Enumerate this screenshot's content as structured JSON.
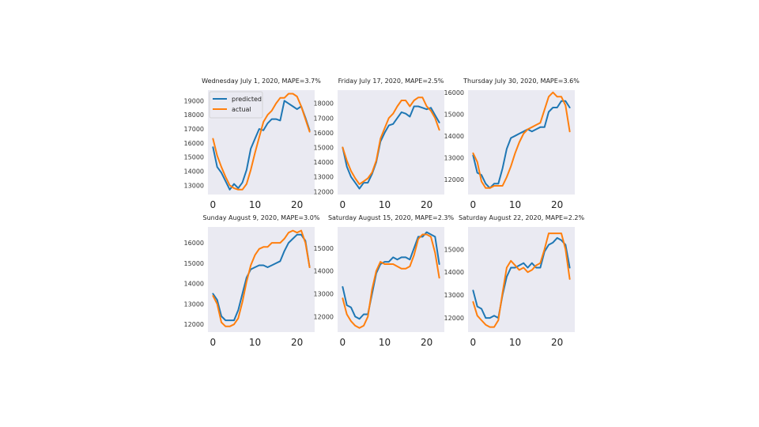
{
  "colors": {
    "predicted": "#1f77b4",
    "actual": "#ff7f0e",
    "panel_bg": "#eaeaf2"
  },
  "chart_data": [
    {
      "type": "line",
      "title": "Wednesday July 1, 2020, MAPE=3.7%",
      "x": [
        0,
        1,
        2,
        3,
        4,
        5,
        6,
        7,
        8,
        9,
        10,
        11,
        12,
        13,
        14,
        15,
        16,
        17,
        18,
        19,
        20,
        21,
        22,
        23
      ],
      "xticks": [
        0,
        10,
        20
      ],
      "xlim": [
        -1.2,
        24.2
      ],
      "yticks": [
        13000,
        14000,
        15000,
        16000,
        17000,
        18000,
        19000
      ],
      "ylim": [
        12350,
        19750
      ],
      "legend": "top-left",
      "grid": false,
      "series": [
        {
          "name": "predicted",
          "values": [
            15700,
            14300,
            13900,
            13300,
            12700,
            13100,
            12800,
            13200,
            14100,
            15600,
            16300,
            17000,
            16900,
            17400,
            17700,
            17700,
            17600,
            19000,
            18800,
            18600,
            18400,
            18600,
            17800,
            16900
          ]
        },
        {
          "name": "actual",
          "values": [
            16300,
            15100,
            14300,
            13600,
            13000,
            12800,
            12700,
            12700,
            13100,
            14100,
            15300,
            16400,
            17500,
            18000,
            18300,
            18800,
            19200,
            19200,
            19500,
            19500,
            19300,
            18600,
            17700,
            16800
          ]
        }
      ]
    },
    {
      "type": "line",
      "title": "Friday July 17, 2020, MAPE=2.5%",
      "x": [
        0,
        1,
        2,
        3,
        4,
        5,
        6,
        7,
        8,
        9,
        10,
        11,
        12,
        13,
        14,
        15,
        16,
        17,
        18,
        19,
        20,
        21,
        22,
        23
      ],
      "xticks": [
        0,
        10,
        20
      ],
      "xlim": [
        -1.2,
        24.2
      ],
      "yticks": [
        12000,
        13000,
        14000,
        15000,
        16000,
        17000,
        18000
      ],
      "ylim": [
        11800,
        18900
      ],
      "grid": false,
      "series": [
        {
          "name": "predicted",
          "values": [
            15000,
            13700,
            13000,
            12600,
            12200,
            12600,
            12600,
            13200,
            14000,
            15400,
            16000,
            16500,
            16600,
            17000,
            17400,
            17300,
            17100,
            17800,
            17800,
            17700,
            17600,
            17700,
            17200,
            16700
          ]
        },
        {
          "name": "actual",
          "values": [
            15000,
            14100,
            13400,
            12900,
            12500,
            12700,
            12900,
            13300,
            14100,
            15600,
            16300,
            17000,
            17300,
            17800,
            18200,
            18200,
            17800,
            18200,
            18400,
            18400,
            17800,
            17500,
            17000,
            16200
          ]
        }
      ]
    },
    {
      "type": "line",
      "title": "Thursday July 30, 2020, MAPE=3.6%",
      "x": [
        0,
        1,
        2,
        3,
        4,
        5,
        6,
        7,
        8,
        9,
        10,
        11,
        12,
        13,
        14,
        15,
        16,
        17,
        18,
        19,
        20,
        21,
        22,
        23
      ],
      "xticks": [
        0,
        10,
        20
      ],
      "xlim": [
        -1.2,
        24.2
      ],
      "yticks": [
        12000,
        13000,
        14000,
        15000,
        16000
      ],
      "ylim": [
        11300,
        16100
      ],
      "grid": false,
      "series": [
        {
          "name": "predicted",
          "values": [
            13100,
            12300,
            12200,
            11800,
            11600,
            11800,
            11800,
            12500,
            13400,
            13900,
            14000,
            14100,
            14200,
            14300,
            14200,
            14300,
            14400,
            14400,
            15100,
            15300,
            15300,
            15600,
            15600,
            15300
          ]
        },
        {
          "name": "actual",
          "values": [
            13200,
            12800,
            11900,
            11600,
            11600,
            11700,
            11700,
            11700,
            12100,
            12600,
            13200,
            13700,
            14100,
            14300,
            14400,
            14500,
            14600,
            15200,
            15800,
            16000,
            15800,
            15800,
            15400,
            14200
          ]
        }
      ]
    },
    {
      "type": "line",
      "title": "Sunday August 9, 2020, MAPE=3.0%",
      "x": [
        0,
        1,
        2,
        3,
        4,
        5,
        6,
        7,
        8,
        9,
        10,
        11,
        12,
        13,
        14,
        15,
        16,
        17,
        18,
        19,
        20,
        21,
        22,
        23
      ],
      "xticks": [
        0,
        10,
        20
      ],
      "xlim": [
        -1.2,
        24.2
      ],
      "yticks": [
        12000,
        13000,
        14000,
        15000,
        16000
      ],
      "ylim": [
        11620,
        16780
      ],
      "grid": false,
      "series": [
        {
          "name": "predicted",
          "values": [
            13500,
            13200,
            12400,
            12200,
            12200,
            12200,
            12700,
            13500,
            14300,
            14700,
            14800,
            14900,
            14900,
            14800,
            14900,
            15000,
            15100,
            15600,
            16000,
            16200,
            16400,
            16400,
            16100,
            14800
          ]
        },
        {
          "name": "actual",
          "values": [
            13400,
            13000,
            12100,
            11900,
            11900,
            12000,
            12300,
            13100,
            14100,
            14900,
            15400,
            15700,
            15800,
            15800,
            16000,
            16000,
            16000,
            16200,
            16500,
            16600,
            16500,
            16600,
            16000,
            14800
          ]
        }
      ]
    },
    {
      "type": "line",
      "title": "Saturday August 15, 2020, MAPE=2.3%",
      "x": [
        0,
        1,
        2,
        3,
        4,
        5,
        6,
        7,
        8,
        9,
        10,
        11,
        12,
        13,
        14,
        15,
        16,
        17,
        18,
        19,
        20,
        21,
        22,
        23
      ],
      "xticks": [
        0,
        10,
        20
      ],
      "xlim": [
        -1.2,
        24.2
      ],
      "yticks": [
        12000,
        13000,
        14000,
        15000
      ],
      "ylim": [
        11320,
        15930
      ],
      "grid": false,
      "series": [
        {
          "name": "predicted",
          "values": [
            13300,
            12500,
            12400,
            12000,
            11900,
            12100,
            12100,
            13000,
            13900,
            14300,
            14400,
            14400,
            14600,
            14500,
            14600,
            14600,
            14500,
            15000,
            15500,
            15500,
            15700,
            15600,
            15500,
            14300
          ]
        },
        {
          "name": "actual",
          "values": [
            12800,
            12100,
            11800,
            11600,
            11500,
            11600,
            12000,
            13200,
            14000,
            14400,
            14300,
            14300,
            14300,
            14200,
            14100,
            14100,
            14200,
            14700,
            15400,
            15600,
            15600,
            15500,
            14800,
            13700
          ]
        }
      ]
    },
    {
      "type": "line",
      "title": "Saturday August 22, 2020, MAPE=2.2%",
      "x": [
        0,
        1,
        2,
        3,
        4,
        5,
        6,
        7,
        8,
        9,
        10,
        11,
        12,
        13,
        14,
        15,
        16,
        17,
        18,
        19,
        20,
        21,
        22,
        23
      ],
      "xticks": [
        0,
        10,
        20
      ],
      "xlim": [
        -1.2,
        24.2
      ],
      "yticks": [
        12000,
        13000,
        14000,
        15000
      ],
      "ylim": [
        11380,
        15980
      ],
      "grid": false,
      "series": [
        {
          "name": "predicted",
          "values": [
            13200,
            12500,
            12400,
            12000,
            12000,
            12100,
            12000,
            13000,
            13800,
            14200,
            14200,
            14300,
            14400,
            14200,
            14400,
            14200,
            14200,
            14900,
            15200,
            15300,
            15500,
            15400,
            15200,
            14200
          ]
        },
        {
          "name": "actual",
          "values": [
            12700,
            12100,
            11900,
            11700,
            11600,
            11600,
            11900,
            13100,
            14200,
            14500,
            14300,
            14100,
            14200,
            14000,
            14100,
            14300,
            14400,
            15000,
            15700,
            15700,
            15700,
            15700,
            15000,
            13700
          ]
        }
      ]
    }
  ]
}
